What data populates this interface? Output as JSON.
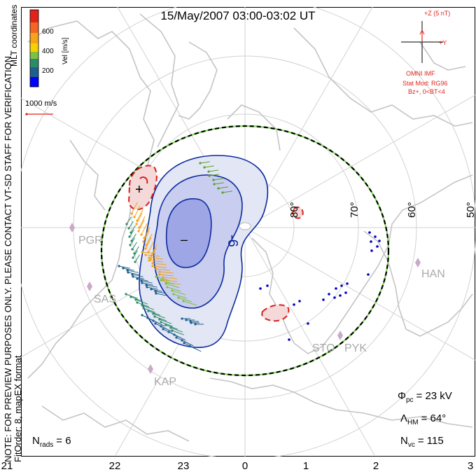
{
  "title": "15/May/2007 03:00-03:02 UT",
  "side_text": {
    "line1": "NOTE: FOR PREVIEW PURPOSES ONLY. PLEASE CONTACT VT-SD STAFF FOR VERIFICATION.",
    "line2": "FitOrder: 8, mapEX format",
    "mlt_coords": "MLT coordinates"
  },
  "colorbar": {
    "label": "Vel [m/s]",
    "ticks": [
      "600",
      "400",
      "200"
    ],
    "colors": [
      "#e2231a",
      "#f47b20",
      "#f5c400",
      "#7dc242",
      "#2e8b57",
      "#1f5f8b",
      "#0000ff"
    ]
  },
  "vector_scale": {
    "label": "1000 m/s",
    "color": "#e2231a"
  },
  "imf": {
    "z_label": "+Z (5 nT)",
    "y_label": "+Y",
    "source": "OMNI IMF",
    "stat_mod": "Stat Mod: RG96",
    "condition": "Bz+, 0<BT<4",
    "color": "#e2231a"
  },
  "latitude_labels": [
    "80°",
    "70°",
    "60°",
    "50°"
  ],
  "stations": [
    "PGR",
    "SAS",
    "KAP",
    "HAN",
    "STO",
    "PYK"
  ],
  "potential_labels": {
    "min": "–",
    "max": "+",
    "contour": "-6"
  },
  "stats": {
    "phi_pc_label": "Φ",
    "phi_pc_sub": "pc",
    "phi_pc_value": "= 23 kV",
    "lambda_label": "Λ",
    "lambda_sub": "HM",
    "lambda_value": "= 64°",
    "nvc_label": "N",
    "nvc_sub": "vc",
    "nvc_value": "= 115",
    "nrads_label": "N",
    "nrads_sub": "rads",
    "nrads_value": "= 6"
  },
  "mlt_axis": [
    "21",
    "22",
    "23",
    "0",
    "1",
    "2",
    "3"
  ],
  "colors": {
    "coastline": "#c8c8c8",
    "grid": "#cfcfcf",
    "contour": "#0a2a9e",
    "hmb_green": "#7ed957",
    "hmb_black": "#000000",
    "station": "#c9a9c9"
  }
}
